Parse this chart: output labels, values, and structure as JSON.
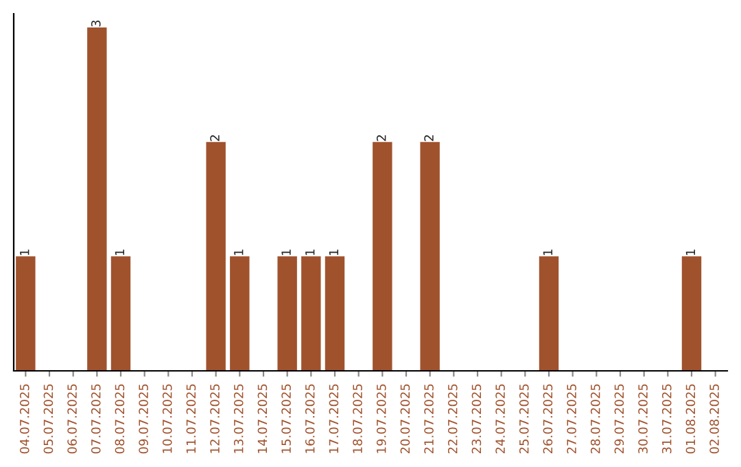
{
  "chart_data": {
    "type": "bar",
    "categories": [
      "04.07.2025",
      "05.07.2025",
      "06.07.2025",
      "07.07.2025",
      "08.07.2025",
      "09.07.2025",
      "10.07.2025",
      "11.07.2025",
      "12.07.2025",
      "13.07.2025",
      "14.07.2025",
      "15.07.2025",
      "16.07.2025",
      "17.07.2025",
      "18.07.2025",
      "19.07.2025",
      "20.07.2025",
      "21.07.2025",
      "22.07.2025",
      "23.07.2025",
      "24.07.2025",
      "25.07.2025",
      "26.07.2025",
      "27.07.2025",
      "28.07.2025",
      "29.07.2025",
      "30.07.2025",
      "31.07.2025",
      "01.08.2025",
      "02.08.2025"
    ],
    "values": [
      1,
      0,
      0,
      3,
      1,
      0,
      0,
      0,
      2,
      1,
      0,
      1,
      1,
      1,
      0,
      2,
      0,
      2,
      0,
      0,
      0,
      0,
      1,
      0,
      0,
      0,
      0,
      0,
      1,
      0
    ],
    "color": "#a0522d",
    "value_labels": [
      "1",
      null,
      null,
      "3",
      "1",
      null,
      null,
      null,
      "2",
      "1",
      null,
      "1",
      "1",
      "1",
      null,
      "2",
      null,
      "2",
      null,
      null,
      null,
      null,
      "1",
      null,
      null,
      null,
      null,
      null,
      "1",
      null
    ],
    "tick_labels": "x",
    "grid": false,
    "legend": false
  }
}
